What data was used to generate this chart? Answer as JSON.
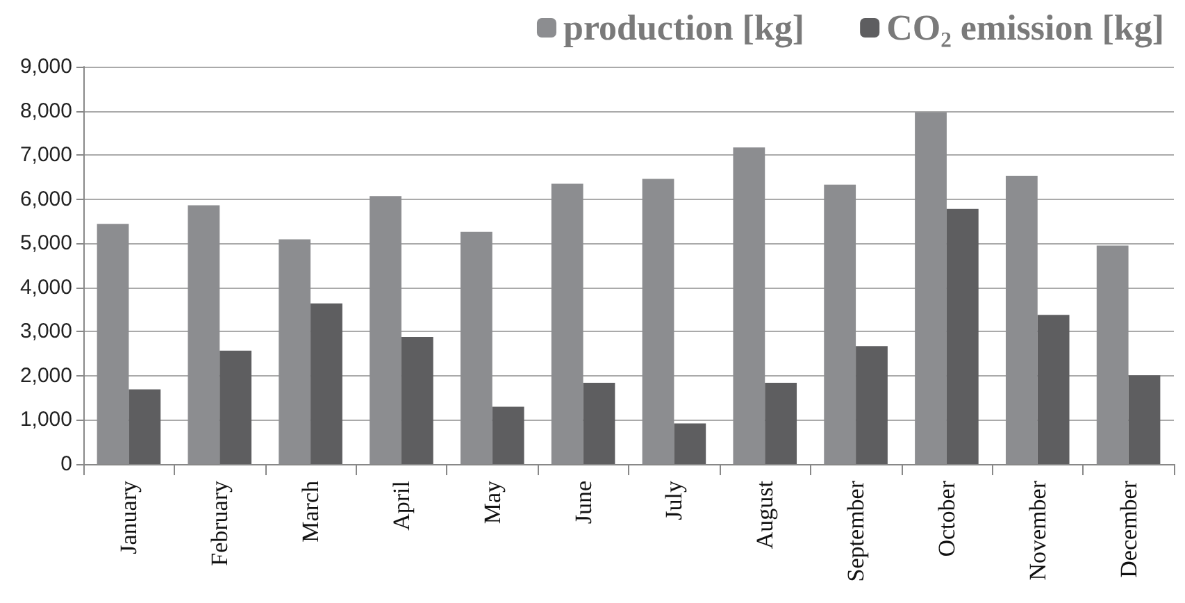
{
  "chart_data": {
    "type": "bar",
    "categories": [
      "January",
      "February",
      "March",
      "April",
      "May",
      "June",
      "July",
      "August",
      "September",
      "October",
      "November",
      "December"
    ],
    "series": [
      {
        "name": "production [kg]",
        "color": "#8c8d90",
        "values": [
          5440,
          5860,
          5090,
          6070,
          5260,
          6350,
          6460,
          7170,
          6330,
          7970,
          6530,
          4950
        ]
      },
      {
        "name": "CO₂ emission [kg]",
        "color": "#5e5e60",
        "values": [
          1690,
          2570,
          3640,
          2880,
          1300,
          1840,
          920,
          1840,
          2670,
          5780,
          3380,
          2010
        ]
      }
    ],
    "ylim": [
      0,
      9000
    ],
    "yticks": [
      0,
      {
        "value": 1000,
        "label": "1,000"
      },
      {
        "value": 2000,
        "label": "2,000"
      },
      {
        "value": 3000,
        "label": "3,000"
      },
      {
        "value": 4000,
        "label": "4,000"
      },
      {
        "value": 5000,
        "label": "5,000"
      },
      {
        "value": 6000,
        "label": "6,000"
      },
      {
        "value": 7000,
        "label": "7,000"
      },
      {
        "value": 8000,
        "label": "8,000"
      },
      {
        "value": 9000,
        "label": "9,000"
      }
    ],
    "grid": "y",
    "legend": "top right"
  }
}
